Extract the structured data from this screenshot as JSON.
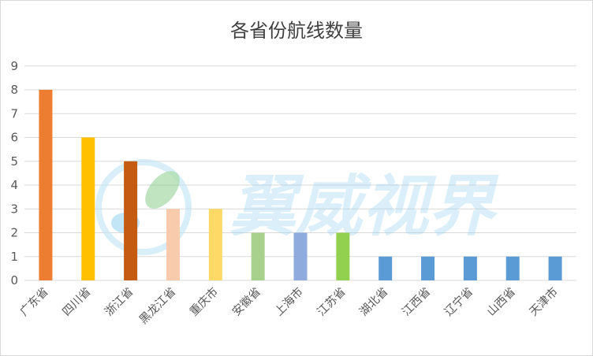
{
  "chart_data": {
    "type": "bar",
    "title": "各省份航线数量",
    "categories": [
      "广东省",
      "四川省",
      "浙江省",
      "黑龙江省",
      "重庆市",
      "安徽省",
      "上海市",
      "江苏省",
      "湖北省",
      "江西省",
      "辽宁省",
      "山西省",
      "天津市"
    ],
    "values": [
      8,
      6,
      5,
      3,
      3,
      2,
      2,
      2,
      1,
      1,
      1,
      1,
      1
    ],
    "colors": [
      "#ED7D31",
      "#FFC000",
      "#C55A11",
      "#F8CBAD",
      "#FFD966",
      "#A9D18E",
      "#8FAADC",
      "#92D050",
      "#5B9BD5",
      "#5B9BD5",
      "#5B9BD5",
      "#5B9BD5",
      "#5B9BD5"
    ],
    "ylim": [
      0,
      9
    ],
    "yticks": [
      0,
      1,
      2,
      3,
      4,
      5,
      6,
      7,
      8,
      9
    ],
    "xlabel": "",
    "ylabel": "",
    "grid": true,
    "legend": "none"
  },
  "watermark": {
    "text": "翼威视界",
    "color": "#8fd0f0"
  }
}
